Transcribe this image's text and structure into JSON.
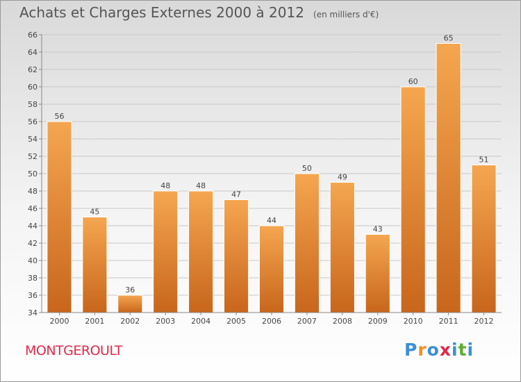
{
  "chart_data": {
    "type": "bar",
    "title": "Achats et Charges Externes 2000 à 2012",
    "subtitle": "(en milliers d'€)",
    "categories": [
      "2000",
      "2001",
      "2002",
      "2003",
      "2004",
      "2005",
      "2006",
      "2007",
      "2008",
      "2009",
      "2010",
      "2011",
      "2012"
    ],
    "values": [
      56,
      45,
      36,
      48,
      48,
      47,
      44,
      50,
      49,
      43,
      60,
      65,
      51
    ],
    "ylim": [
      34,
      66
    ],
    "yticks": [
      34,
      36,
      38,
      40,
      42,
      44,
      46,
      48,
      50,
      52,
      54,
      56,
      58,
      60,
      62,
      64,
      66
    ],
    "xlabel": "",
    "ylabel": "",
    "grid": true,
    "bar_color_top": "#f5a650",
    "bar_color_bottom": "#c8661c"
  },
  "footer": {
    "commune": "MONTGEROULT",
    "commune_color": "#e0294a",
    "logo": [
      "P",
      "r",
      "o",
      "x",
      "i",
      "t",
      "i"
    ],
    "logo_colors": [
      "#3a8fd8",
      "#f28c1e",
      "#3a8fd8",
      "#e0294a",
      "#3a8fd8",
      "#5fae2e",
      "#3a8fd8"
    ]
  }
}
